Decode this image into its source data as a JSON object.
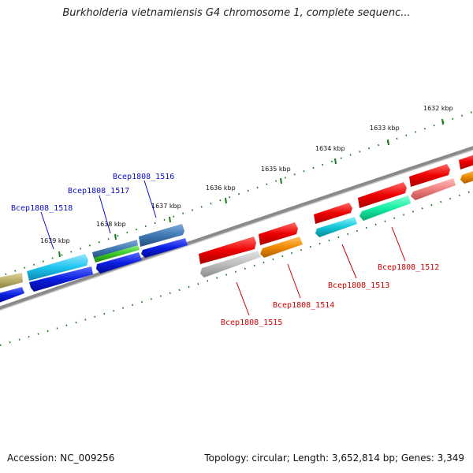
{
  "title": "Burkholderia vietnamiensis G4 chromosome 1, complete sequenc...",
  "footer": {
    "accession": "Accession: NC_009256",
    "summary": "Topology: circular; Length: 3,652,814 bp; Genes: 3,349"
  },
  "scale_labels": [
    "1632 kbp",
    "1633 kbp",
    "1634 kbp",
    "1635 kbp",
    "1636 kbp",
    "1637 kbp",
    "1638 kbp",
    "1639 kbp"
  ],
  "gene_labels": {
    "top_strand": [
      "Bcep1808_1516",
      "Bcep1808_1517",
      "Bcep1808_1518"
    ],
    "bottom_strand": [
      "Bcep1808_1512",
      "Bcep1808_1513",
      "Bcep1808_1514",
      "Bcep1808_1515"
    ]
  },
  "colors": {
    "backbone": "#808080",
    "tick": "#1a7a1a",
    "label_blue": "#0b0bd0",
    "label_red": "#d00000"
  }
}
